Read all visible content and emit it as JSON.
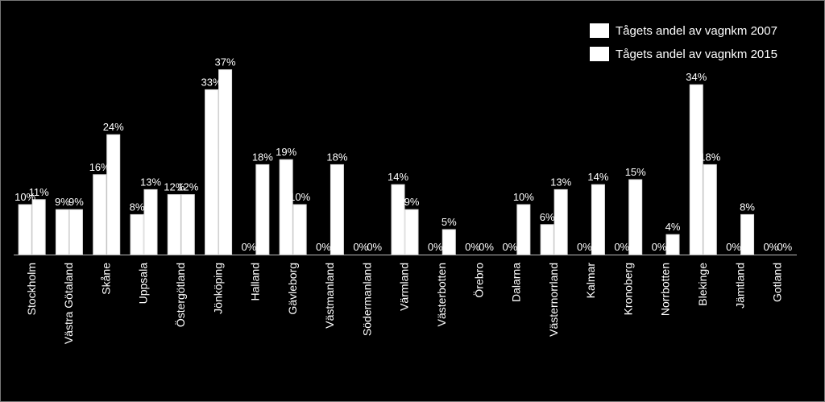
{
  "chart_data": {
    "type": "bar",
    "title": "",
    "xlabel": "",
    "ylabel": "",
    "ylim": [
      0,
      37
    ],
    "grid": false,
    "legend_position": "top-right",
    "colors": {
      "background": "#000000",
      "bars": "#ffffff",
      "text": "#ffffff"
    },
    "categories": [
      "Stockholm",
      "Västra Götaland",
      "Skåne",
      "Uppsala",
      "Östergötland",
      "Jönköping",
      "Halland",
      "Gävleborg",
      "Västmanland",
      "Södermanland",
      "Värmland",
      "Västerbotten",
      "Örebro",
      "Dalarna",
      "Västernorrland",
      "Kalmar",
      "Kronoberg",
      "Norrbotten",
      "Blekinge",
      "Jämtland",
      "Gotland"
    ],
    "series": [
      {
        "name": "Tågets andel av vagnkm 2007",
        "values": [
          10,
          9,
          16,
          8,
          12,
          33,
          0,
          19,
          0,
          0,
          14,
          0,
          0,
          0,
          6,
          0,
          0,
          0,
          34,
          0,
          0
        ]
      },
      {
        "name": "Tågets andel av vagnkm 2015",
        "values": [
          11,
          9,
          24,
          13,
          12,
          37,
          18,
          10,
          18,
          0,
          9,
          5,
          0,
          10,
          13,
          14,
          15,
          4,
          18,
          8,
          0
        ]
      }
    ],
    "value_suffix": "%"
  }
}
